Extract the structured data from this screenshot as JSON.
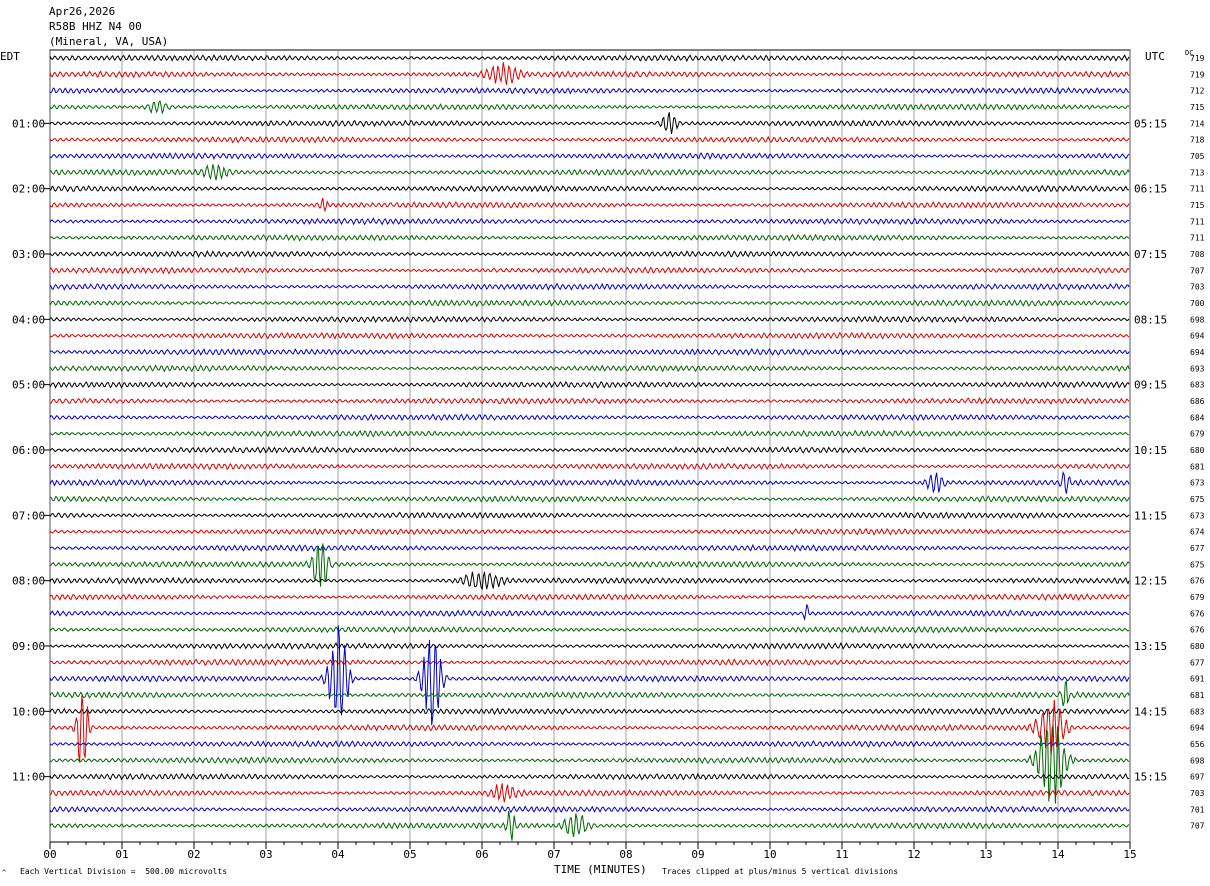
{
  "header": {
    "date": "Apr26,2026",
    "station": "R58B HHZ N4 00",
    "location": "(Mineral, VA, USA)"
  },
  "labels": {
    "left_tz": "EDT",
    "right_tz": "UTC",
    "dc": "DC",
    "xlabel": "TIME (MINUTES)",
    "scale_note": "Each Vertical Division =  500.00 microvolts",
    "clip_note": "Traces clipped at plus/minus 5 vertical divisions",
    "corner_mark": "^"
  },
  "chart_data": {
    "type": "line",
    "title": "R58B HHZ N4 00 (Mineral, VA, USA) Apr26,2026",
    "xlabel": "TIME (MINUTES)",
    "x_range": [
      0,
      15
    ],
    "x_ticks": [
      "00",
      "01",
      "02",
      "03",
      "04",
      "05",
      "06",
      "07",
      "08",
      "09",
      "10",
      "11",
      "12",
      "13",
      "14",
      "15"
    ],
    "left_time_labels": [
      "01:00",
      "02:00",
      "03:00",
      "04:00",
      "05:00",
      "06:00",
      "07:00",
      "08:00",
      "09:00",
      "10:00",
      "11:00"
    ],
    "right_time_labels": [
      "05:15",
      "06:15",
      "07:15",
      "08:15",
      "09:15",
      "10:15",
      "11:15",
      "12:15",
      "13:15",
      "14:15",
      "15:15"
    ],
    "dc_offsets": [
      719,
      719,
      712,
      715,
      714,
      718,
      705,
      713,
      711,
      715,
      711,
      711,
      708,
      707,
      703,
      700,
      698,
      694,
      694,
      693,
      683,
      686,
      684,
      679,
      680,
      681,
      673,
      675,
      673,
      674,
      677,
      675,
      676,
      679,
      676,
      676,
      680,
      677,
      691,
      681,
      683,
      694,
      656,
      698,
      697,
      703,
      701,
      707
    ],
    "trace_colors": [
      "#000000",
      "#dd0000",
      "#0000cc",
      "#006600"
    ],
    "events": [
      {
        "trace": 1,
        "minute": 6.3,
        "amp": 0.45,
        "width": 0.4
      },
      {
        "trace": 3,
        "minute": 1.5,
        "amp": 0.35,
        "width": 0.25
      },
      {
        "trace": 4,
        "minute": 8.6,
        "amp": 0.55,
        "width": 0.2
      },
      {
        "trace": 7,
        "minute": 2.3,
        "amp": 0.35,
        "width": 0.3
      },
      {
        "trace": 9,
        "minute": 3.8,
        "amp": 0.35,
        "width": 0.1
      },
      {
        "trace": 26,
        "minute": 12.3,
        "amp": 0.45,
        "width": 0.25
      },
      {
        "trace": 26,
        "minute": 14.1,
        "amp": 0.6,
        "width": 0.1
      },
      {
        "trace": 31,
        "minute": 3.75,
        "amp": 1.5,
        "width": 0.2
      },
      {
        "trace": 32,
        "minute": 6.0,
        "amp": 0.45,
        "width": 0.5
      },
      {
        "trace": 34,
        "minute": 10.5,
        "amp": 0.8,
        "width": 0.05
      },
      {
        "trace": 38,
        "minute": 4.0,
        "amp": 2.6,
        "width": 0.25
      },
      {
        "trace": 38,
        "minute": 5.3,
        "amp": 2.3,
        "width": 0.25
      },
      {
        "trace": 39,
        "minute": 14.1,
        "amp": 0.9,
        "width": 0.08
      },
      {
        "trace": 41,
        "minute": 0.45,
        "amp": 2.4,
        "width": 0.15
      },
      {
        "trace": 41,
        "minute": 13.9,
        "amp": 1.4,
        "width": 0.35
      },
      {
        "trace": 43,
        "minute": 13.9,
        "amp": 2.6,
        "width": 0.35
      },
      {
        "trace": 45,
        "minute": 6.3,
        "amp": 0.45,
        "width": 0.3
      },
      {
        "trace": 47,
        "minute": 6.4,
        "amp": 0.9,
        "width": 0.1
      },
      {
        "trace": 47,
        "minute": 7.3,
        "amp": 0.6,
        "width": 0.3
      }
    ]
  }
}
